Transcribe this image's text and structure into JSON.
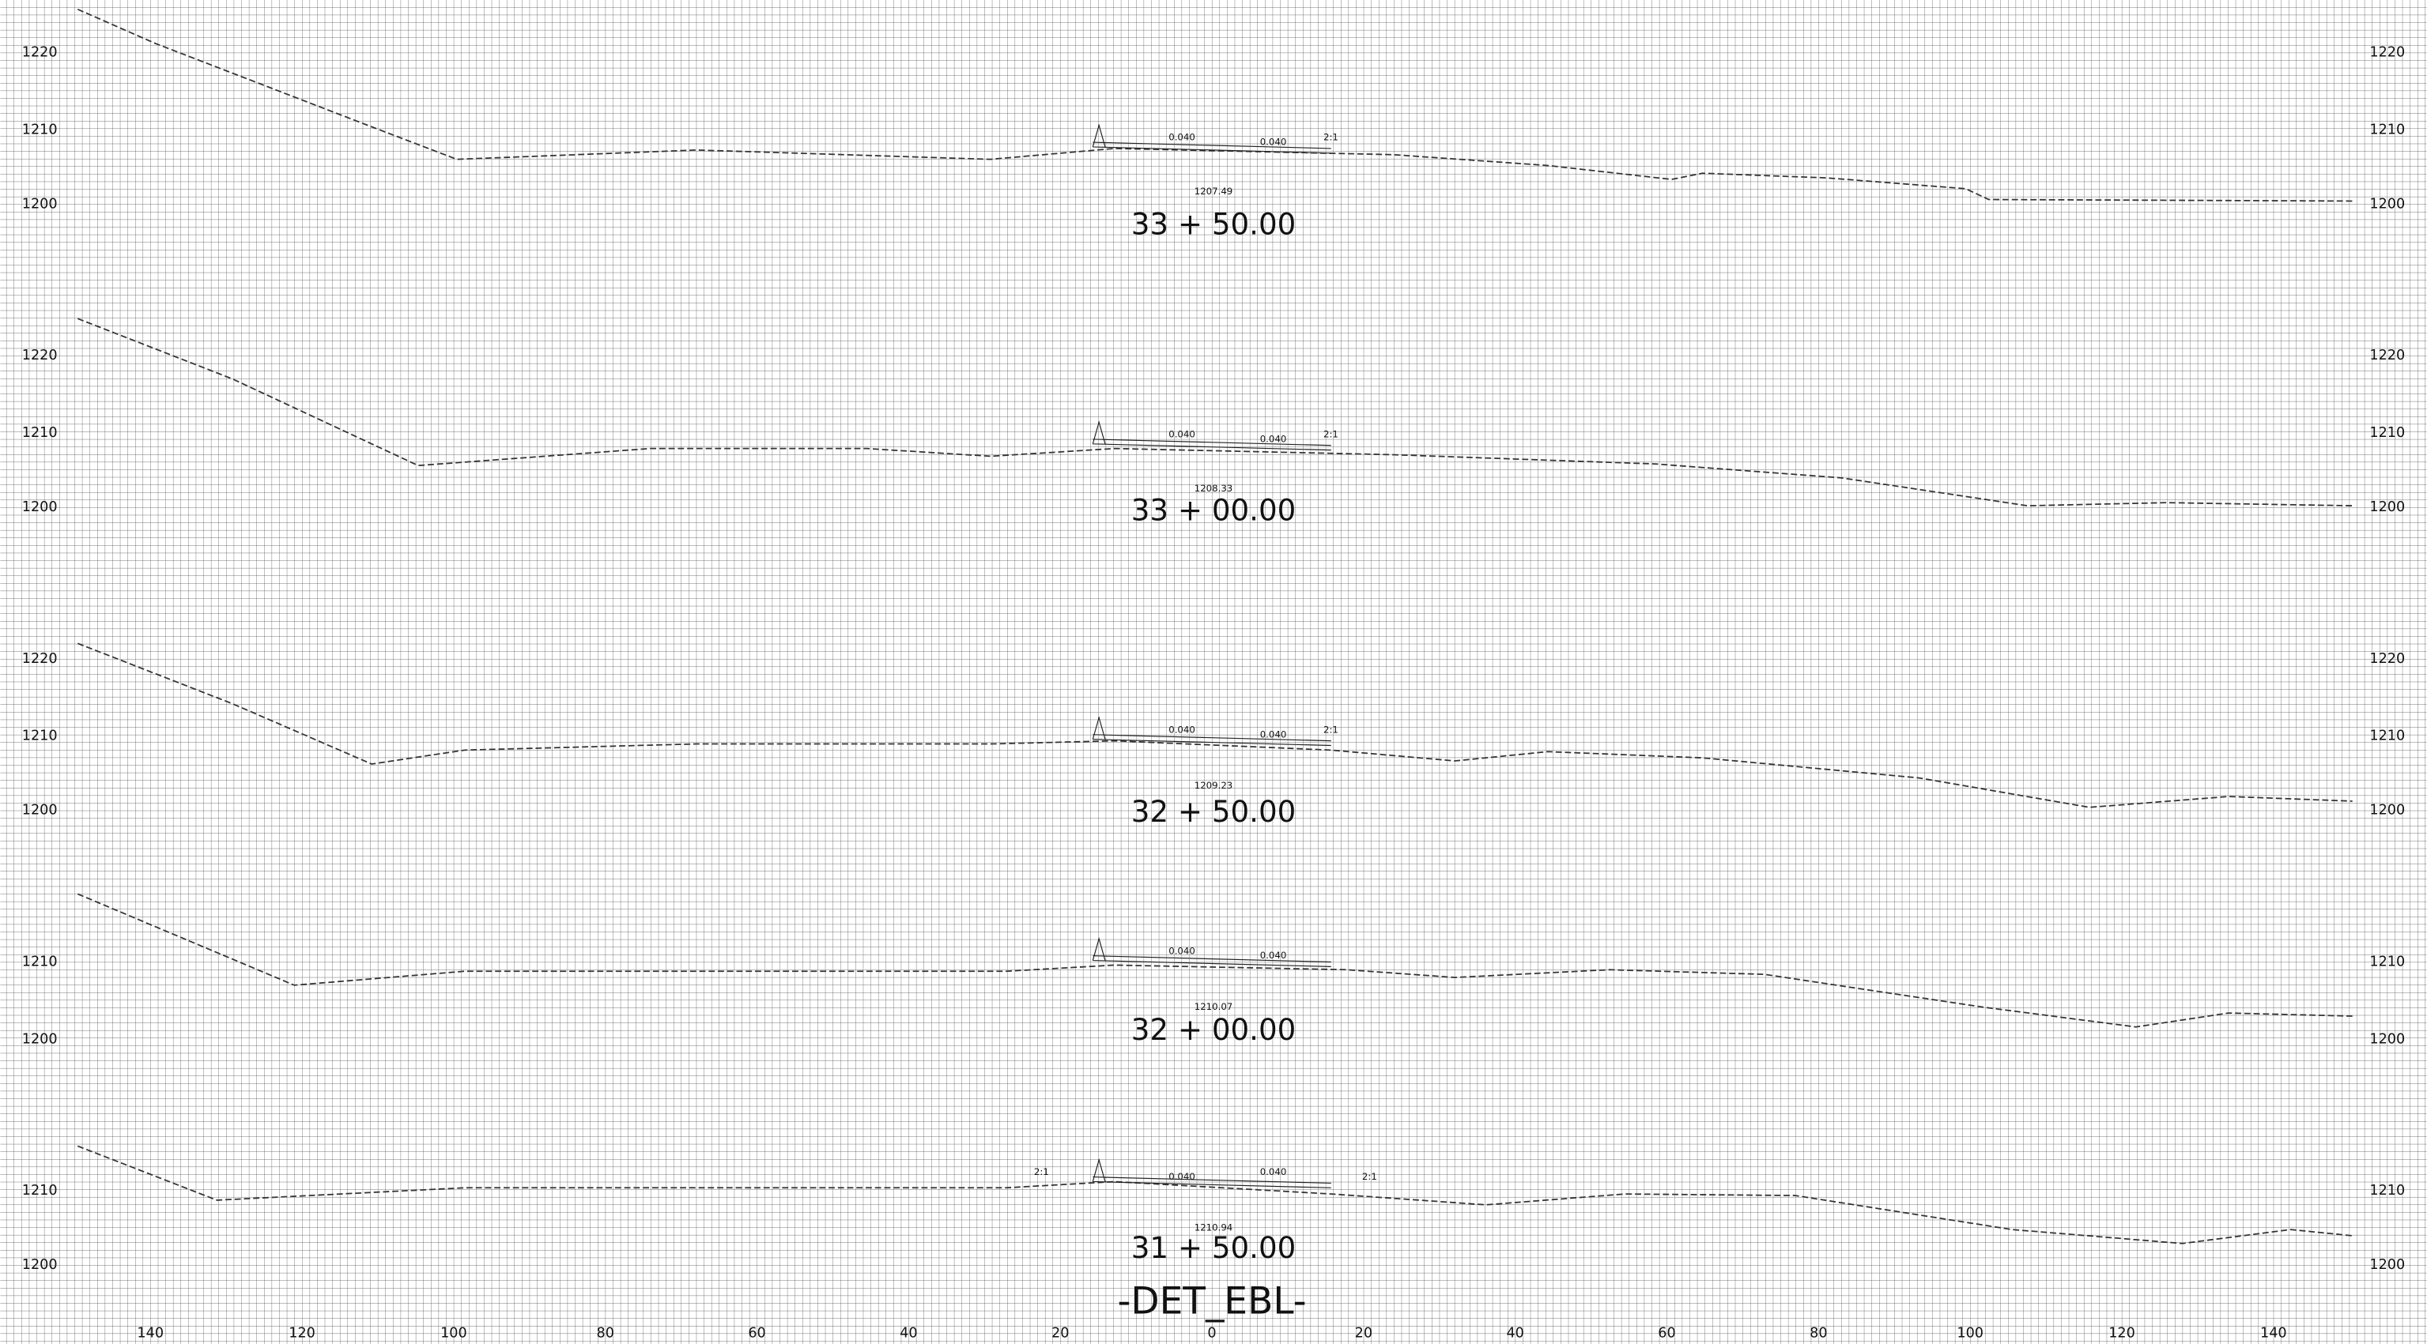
{
  "title": "-DET_EBL-",
  "sections": [
    {
      "station": "33 + 50.00",
      "elevation": "1207.49",
      "left_labels": [
        "1220",
        "1210",
        "1200"
      ],
      "right_labels": [
        "1220",
        "1210",
        "1200"
      ],
      "slopes": [
        "0.040",
        "0.040",
        "2:1"
      ]
    },
    {
      "station": "33 + 00.00",
      "elevation": "1208.33",
      "left_labels": [
        "1220",
        "1210",
        "1200"
      ],
      "right_labels": [
        "1220",
        "1210",
        "1200"
      ],
      "slopes": [
        "0.040",
        "0.040",
        "2:1"
      ]
    },
    {
      "station": "32 + 50.00",
      "elevation": "1209.23",
      "left_labels": [
        "1220",
        "1210",
        "1200"
      ],
      "right_labels": [
        "1220",
        "1210",
        "1200"
      ],
      "slopes": [
        "0.040",
        "0.040",
        "2:1"
      ]
    },
    {
      "station": "32 + 00.00",
      "elevation": "1210.07",
      "left_labels": [
        "1210",
        "1200"
      ],
      "right_labels": [
        "1210",
        "1200"
      ],
      "slopes": [
        "0.040",
        "0.040"
      ]
    },
    {
      "station": "31 + 50.00",
      "elevation": "1210.94",
      "left_labels": [
        "1210",
        "1200"
      ],
      "right_labels": [
        "1210",
        "1200"
      ],
      "slopes": [
        "2:1",
        "0.040",
        "0.040",
        "2:1"
      ]
    }
  ],
  "offset_labels": [
    "140",
    "120",
    "100",
    "80",
    "60",
    "40",
    "20",
    "0",
    "20",
    "40",
    "60",
    "80",
    "100",
    "120",
    "140"
  ]
}
